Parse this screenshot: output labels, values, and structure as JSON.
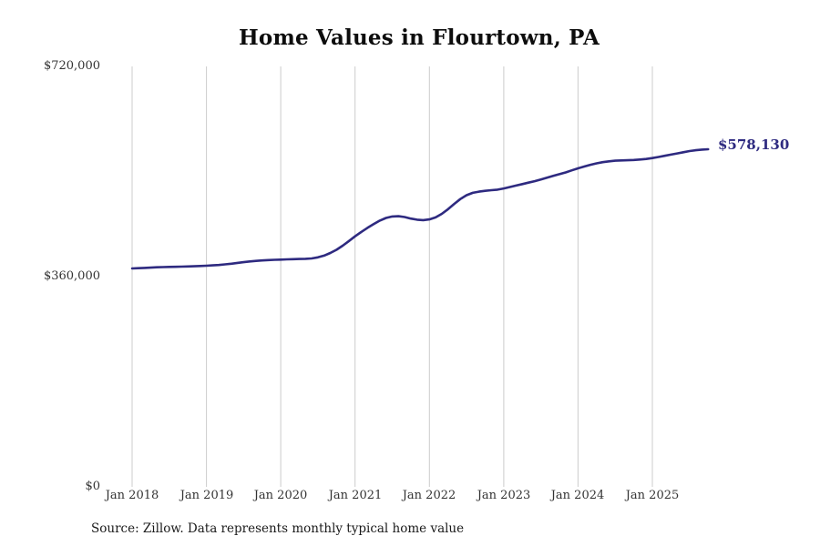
{
  "title": "Home Values in Flourtown, PA",
  "source_note": "Source: Zillow. Data represents monthly typical home value",
  "colors": {
    "line": "#2e2a80",
    "end_label": "#2e2a80",
    "grid": "#cccccc",
    "axis_text": "#333333"
  },
  "chart_data": {
    "type": "line",
    "title": "Home Values in Flourtown, PA",
    "xlabel": "",
    "ylabel": "",
    "ylim": [
      0,
      720000
    ],
    "y_ticks": [
      720000,
      360000,
      0
    ],
    "y_tick_labels": [
      "$720,000",
      "$360,000",
      "$0"
    ],
    "x_tick_labels": [
      "Jan 2018",
      "Jan 2019",
      "Jan 2020",
      "Jan 2021",
      "Jan 2022",
      "Jan 2023",
      "Jan 2024",
      "Jan 2025"
    ],
    "x_unit": "month",
    "x_start": "Jan 2018",
    "x_end": "Oct 2025",
    "grid": "vertical-only",
    "legend": "none",
    "last_value": 578130,
    "last_value_label": "$578,130",
    "series": [
      {
        "name": "Typical home value",
        "values": [
          374000,
          374500,
          375000,
          375500,
          376000,
          376300,
          376600,
          376900,
          377200,
          377500,
          377800,
          378200,
          378700,
          379300,
          380000,
          381000,
          382200,
          383500,
          384800,
          386000,
          387000,
          387800,
          388400,
          388800,
          389200,
          389600,
          390000,
          390200,
          390500,
          391200,
          393000,
          396000,
          400500,
          406000,
          413000,
          421000,
          429000,
          436500,
          443500,
          450000,
          456000,
          460500,
          463000,
          463500,
          462000,
          459500,
          457500,
          456800,
          458000,
          461500,
          467500,
          475500,
          484500,
          493000,
          499500,
          503500,
          505500,
          507000,
          508000,
          509000,
          511000,
          513500,
          516000,
          518500,
          521000,
          523500,
          526500,
          529500,
          532500,
          535500,
          538500,
          542000,
          545500,
          548500,
          551500,
          554000,
          556000,
          557500,
          558500,
          559000,
          559300,
          559800,
          560500,
          561500,
          563000,
          565000,
          567000,
          569000,
          571000,
          573000,
          575000,
          576500,
          577500,
          578130
        ]
      }
    ]
  }
}
